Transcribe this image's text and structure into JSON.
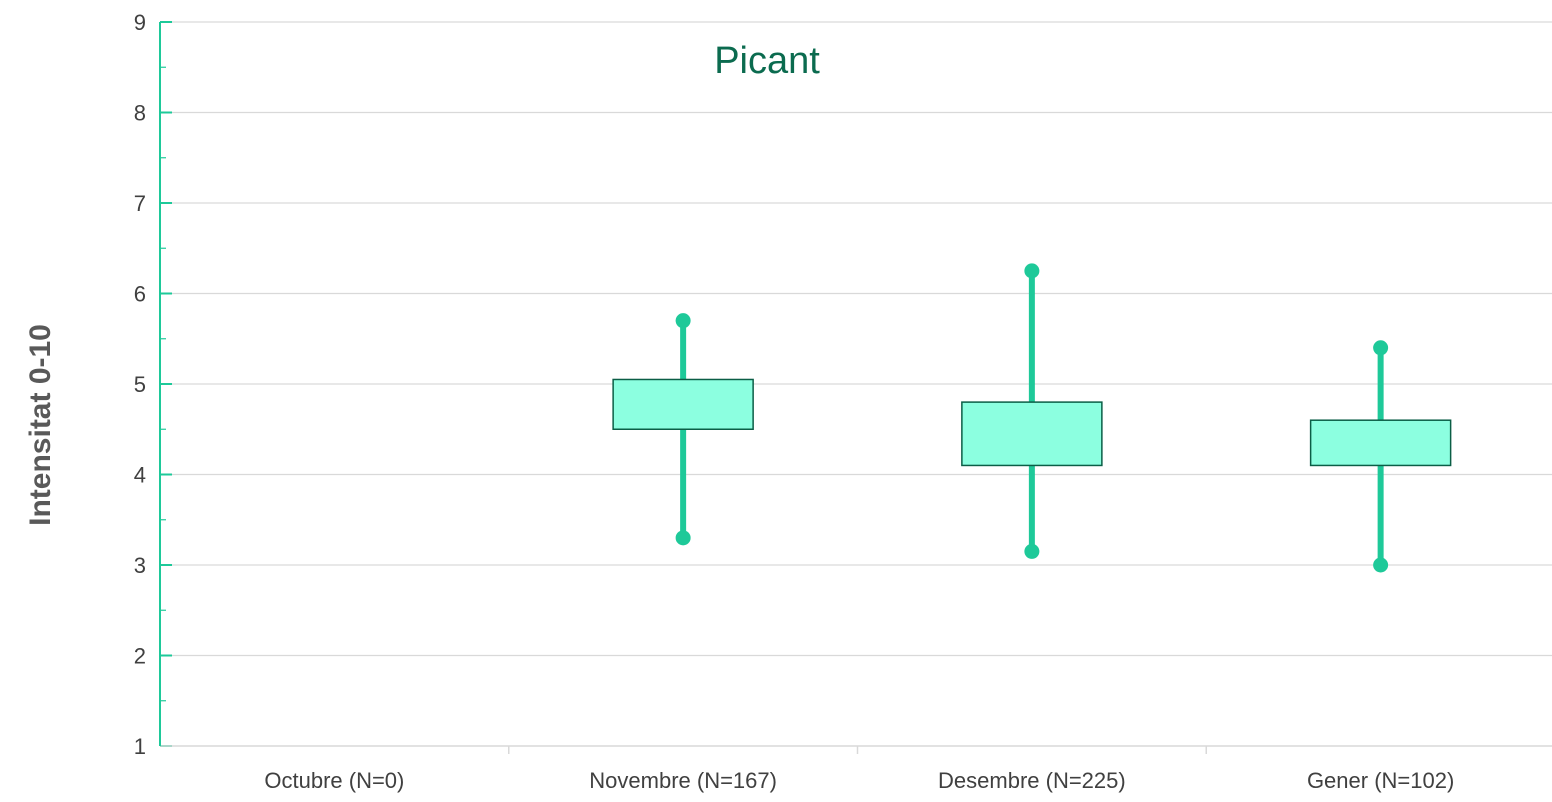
{
  "chart_data": {
    "type": "box",
    "title": "Picant",
    "xlabel": "",
    "ylabel": "Intensitat 0-10",
    "ylim": [
      1,
      9
    ],
    "yticks": [
      1,
      2,
      3,
      4,
      5,
      6,
      7,
      8,
      9
    ],
    "grid": true,
    "categories": [
      "Octubre (N=0)",
      "Novembre (N=167)",
      "Desembre (N=225)",
      "Gener (N=102)"
    ],
    "boxes": [
      null,
      {
        "min": 3.3,
        "q1": 4.5,
        "q3": 5.05,
        "max": 5.7
      },
      {
        "min": 3.15,
        "q1": 4.1,
        "q3": 4.8,
        "max": 6.25
      },
      {
        "min": 3.0,
        "q1": 4.1,
        "q3": 4.6,
        "max": 5.4
      }
    ],
    "colors": {
      "title": "#0b6b4f",
      "box_fill": "#8cffe0",
      "box_stroke": "#0b5e46",
      "whisker": "#1ec999",
      "axis": "#1ec999",
      "grid": "#d9d9d9"
    }
  }
}
